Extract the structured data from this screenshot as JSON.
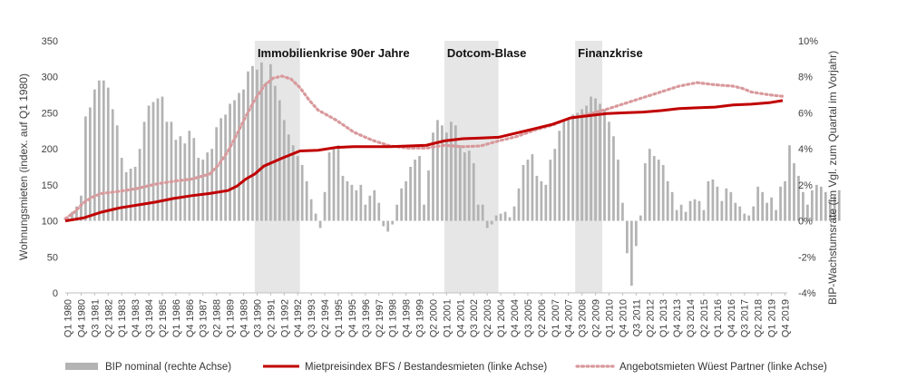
{
  "chart_data": {
    "type": "bar-line-combo",
    "colors": {
      "bars": "#b3b3b3",
      "rent_index": "#c00000",
      "offer_rents": "#d9999c",
      "band": "#e6e6e6"
    },
    "left_axis": {
      "label": "Wohnungsmieten (index. auf Q1 1980)",
      "min": 0,
      "max": 350,
      "ticks": [
        0,
        50,
        100,
        150,
        200,
        250,
        300,
        350
      ]
    },
    "right_axis": {
      "label": "BIP-Wachstumsrate (im Vgl. zum Quartal im Vorjahr)",
      "min": -4,
      "max": 10,
      "ticks": [
        "-4%",
        "-2%",
        "0%",
        "2%",
        "4%",
        "6%",
        "8%",
        "10%"
      ]
    },
    "x_tick_labels": [
      "Q1 1980",
      "Q4 1980",
      "Q3 1981",
      "Q2 1982",
      "Q1 1983",
      "Q4 1983",
      "Q3 1984",
      "Q2 1985",
      "Q1 1986",
      "Q4 1986",
      "Q3 1987",
      "Q2 1988",
      "Q1 1989",
      "Q4 1989",
      "Q3 1990",
      "Q2 1991",
      "Q1 1992",
      "Q4 1992",
      "Q3 1993",
      "Q2 1994",
      "Q1 1995",
      "Q4 1995",
      "Q3 1996",
      "Q2 1997",
      "Q1 1998",
      "Q4 1998",
      "Q3 1999",
      "Q2 2000",
      "Q1 2001",
      "Q4 2001",
      "Q3 2002",
      "Q2 2003",
      "Q1 2004",
      "Q4 2004",
      "Q3 2005",
      "Q2 2006",
      "Q1 2007",
      "Q4 2007",
      "Q3 2008",
      "Q2 2009",
      "Q1 2010",
      "Q4 2010",
      "Q3 2011",
      "Q2 2012",
      "Q1 2013",
      "Q4 2013",
      "Q3 2014",
      "Q2 2015",
      "Q1 2016",
      "Q4 2016",
      "Q3 2017",
      "Q2 2018",
      "Q1 2019",
      "Q4 2019"
    ],
    "bands": [
      {
        "label": "Immobilienkrise 90er Jahre",
        "from_year": 1990.5,
        "to_year": 1993.0
      },
      {
        "label": "Dotcom-Blase",
        "from_year": 2001.0,
        "to_year": 2004.0
      },
      {
        "label": "Finanzkrise",
        "from_year": 2008.25,
        "to_year": 2009.75
      }
    ],
    "gdp_series": {
      "name": "BIP  nominal (rechte Achse)",
      "start_year": 1980,
      "values": [
        0.2,
        0.5,
        0.8,
        1.4,
        5.8,
        6.3,
        7.3,
        7.8,
        7.8,
        7.4,
        6.2,
        5.3,
        3.5,
        2.7,
        2.9,
        3.0,
        4.0,
        5.5,
        6.4,
        6.6,
        6.8,
        6.9,
        5.5,
        5.5,
        4.5,
        4.7,
        4.3,
        5.0,
        4.6,
        3.5,
        3.4,
        3.8,
        4.0,
        5.2,
        5.7,
        5.9,
        6.5,
        6.7,
        7.1,
        7.3,
        8.3,
        8.6,
        8.4,
        8.8,
        7.7,
        8.7,
        7.5,
        6.7,
        5.6,
        4.8,
        4.2,
        3.6,
        3.1,
        2.2,
        1.2,
        0.4,
        -0.4,
        1.6,
        3.8,
        4.1,
        4.2,
        2.5,
        2.2,
        2.0,
        1.7,
        2.0,
        0.9,
        1.4,
        1.7,
        1.0,
        -0.3,
        -0.6,
        -0.2,
        0.9,
        1.8,
        2.2,
        3.0,
        3.4,
        3.6,
        0.9,
        2.8,
        4.9,
        5.6,
        5.3,
        4.9,
        5.5,
        5.3,
        4.2,
        3.8,
        3.9,
        3.2,
        0.9,
        0.9,
        -0.4,
        -0.2,
        0.3,
        0.4,
        0.5,
        0.2,
        0.8,
        1.8,
        3.1,
        3.4,
        3.7,
        2.5,
        2.2,
        2.0,
        3.4,
        4.0,
        5.0,
        5.6,
        5.7,
        5.9,
        6.0,
        6.2,
        6.4,
        6.9,
        6.8,
        6.5,
        6.2,
        5.5,
        4.7,
        3.4,
        1.0,
        -1.8,
        -3.6,
        -1.4,
        0.3,
        3.2,
        4.0,
        3.6,
        3.4,
        3.1,
        2.2,
        1.6,
        0.6,
        0.9,
        0.5,
        1.1,
        1.2,
        1.1,
        0.6,
        2.2,
        2.3,
        1.9,
        1.1,
        1.8,
        1.6,
        1.0,
        0.8,
        0.4,
        0.3,
        0.8,
        1.9,
        1.6,
        1.0,
        1.3,
        0.6,
        1.9,
        2.2,
        4.2,
        3.2,
        2.5,
        1.6,
        0.9,
        1.7,
        2.0,
        1.9,
        1.6,
        1.2,
        1.4,
        1.7
      ]
    },
    "rent_series": {
      "name": "Mietpreisindex BFS / Bestandesmieten (linke Achse)",
      "points": [
        [
          1980,
          100
        ],
        [
          1981,
          104
        ],
        [
          1982,
          112
        ],
        [
          1983,
          118
        ],
        [
          1984,
          122
        ],
        [
          1985,
          126
        ],
        [
          1986,
          131
        ],
        [
          1987,
          135
        ],
        [
          1988,
          138
        ],
        [
          1989,
          142
        ],
        [
          1989.5,
          148
        ],
        [
          1990,
          158
        ],
        [
          1990.5,
          165
        ],
        [
          1991,
          176
        ],
        [
          1992,
          187
        ],
        [
          1993,
          197
        ],
        [
          1994,
          198
        ],
        [
          1995,
          202
        ],
        [
          1996,
          203
        ],
        [
          1997,
          203
        ],
        [
          1998,
          203
        ],
        [
          1999,
          204
        ],
        [
          2000,
          205
        ],
        [
          2001,
          211
        ],
        [
          2002,
          214
        ],
        [
          2003,
          215
        ],
        [
          2004,
          216
        ],
        [
          2005,
          222
        ],
        [
          2006,
          228
        ],
        [
          2007,
          234
        ],
        [
          2008,
          243
        ],
        [
          2009,
          246
        ],
        [
          2010,
          249
        ],
        [
          2011,
          250
        ],
        [
          2012,
          251
        ],
        [
          2013,
          253
        ],
        [
          2014,
          256
        ],
        [
          2015,
          257
        ],
        [
          2016,
          258
        ],
        [
          2017,
          261
        ],
        [
          2018,
          262
        ],
        [
          2019,
          264
        ],
        [
          2019.75,
          267
        ]
      ]
    },
    "offer_series": {
      "name": "Angebotsmieten Wüest Partner (linke Achse)",
      "points": [
        [
          1980,
          103
        ],
        [
          1980.5,
          112
        ],
        [
          1981,
          125
        ],
        [
          1981.5,
          133
        ],
        [
          1982,
          138
        ],
        [
          1983,
          141
        ],
        [
          1984,
          145
        ],
        [
          1985,
          151
        ],
        [
          1986,
          155
        ],
        [
          1987,
          158
        ],
        [
          1988,
          165
        ],
        [
          1988.5,
          178
        ],
        [
          1989,
          196
        ],
        [
          1989.5,
          220
        ],
        [
          1990,
          245
        ],
        [
          1990.5,
          268
        ],
        [
          1991,
          287
        ],
        [
          1991.5,
          298
        ],
        [
          1992,
          301
        ],
        [
          1992.5,
          297
        ],
        [
          1993,
          285
        ],
        [
          1993.5,
          268
        ],
        [
          1994,
          254
        ],
        [
          1995,
          240
        ],
        [
          1996,
          223
        ],
        [
          1997,
          212
        ],
        [
          1998,
          204
        ],
        [
          1999,
          201
        ],
        [
          2000,
          201
        ],
        [
          2001,
          205
        ],
        [
          2002,
          203
        ],
        [
          2003,
          204
        ],
        [
          2004,
          211
        ],
        [
          2005,
          217
        ],
        [
          2006,
          226
        ],
        [
          2007,
          233
        ],
        [
          2008,
          243
        ],
        [
          2009,
          248
        ],
        [
          2010,
          255
        ],
        [
          2011,
          263
        ],
        [
          2012,
          271
        ],
        [
          2013,
          279
        ],
        [
          2014,
          287
        ],
        [
          2015,
          292
        ],
        [
          2016,
          289
        ],
        [
          2017,
          287
        ],
        [
          2017.5,
          284
        ],
        [
          2018,
          279
        ],
        [
          2019,
          275
        ],
        [
          2019.75,
          273
        ]
      ]
    }
  }
}
